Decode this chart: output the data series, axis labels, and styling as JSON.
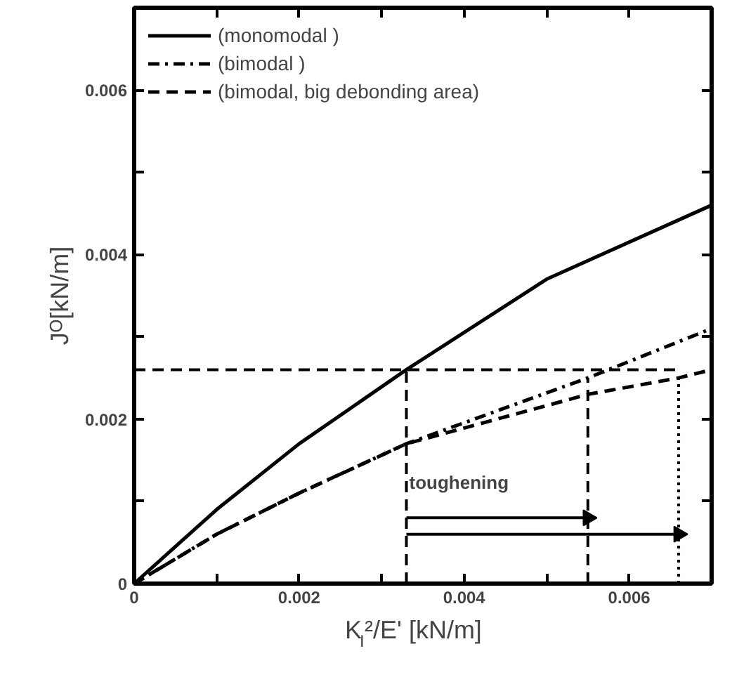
{
  "chart_data": {
    "type": "line",
    "xlabel": "K$_{I}$²/E' [kN/m]",
    "ylabel": "Jᴼ[kN/m]",
    "xlim": [
      0,
      0.007
    ],
    "ylim": [
      0,
      0.007
    ],
    "xticks": [
      0,
      {
        "value": 0.001,
        "label": null
      },
      0.002,
      {
        "value": 0.003,
        "label": null
      },
      0.004,
      {
        "value": 0.005,
        "label": null
      },
      0.006
    ],
    "yticks": [
      0,
      {
        "value": 0.001,
        "label": null
      },
      0.002,
      {
        "value": 0.003,
        "label": null
      },
      0.004,
      {
        "value": 0.005,
        "label": null
      },
      0.006
    ],
    "legend": "top left",
    "grid": false,
    "series": [
      {
        "name": "(monomodal )",
        "color": "#000000",
        "line_style": "solid",
        "x": [
          0,
          0.001,
          0.002,
          0.0033,
          0.005,
          0.007
        ],
        "values": [
          0,
          0.0009,
          0.0017,
          0.0026,
          0.0037,
          0.0046
        ]
      },
      {
        "name": "(bimodal )",
        "color": "#000000",
        "line_style": "dashdot",
        "x": [
          0,
          0.001,
          0.002,
          0.0033,
          0.0055,
          0.007
        ],
        "values": [
          0,
          0.0006,
          0.0011,
          0.0017,
          0.0025,
          0.0031
        ]
      },
      {
        "name": "(bimodal, big debonding area)",
        "color": "#000000",
        "line_style": "dashed",
        "x": [
          0,
          0.001,
          0.002,
          0.0033,
          0.0055,
          0.0066,
          0.007
        ],
        "values": [
          0,
          0.0006,
          0.0011,
          0.0017,
          0.0023,
          0.0025,
          0.0026
        ]
      },
      {
        "color": "#000000",
        "line_style": "dashed",
        "x": [
          0,
          0.0066
        ],
        "values": [
          0.0026,
          0.0026
        ]
      },
      {
        "color": "#000000",
        "line_style": "dashed",
        "x": [
          0.0033,
          0.0033
        ],
        "values": [
          0,
          0.0026
        ]
      },
      {
        "color": "#000000",
        "line_style": "dashed",
        "x": [
          0.0055,
          0.0055
        ],
        "values": [
          0,
          0.0025
        ]
      },
      {
        "color": "#000000",
        "line_style": "dotted",
        "x": [
          0.0066,
          0.0066
        ],
        "values": [
          0,
          0.0025
        ]
      },
      {
        "color": "#000000",
        "line_style": "solid",
        "marker": "triangle",
        "x": [
          0.0033,
          0.0055
        ],
        "values": [
          0.0008,
          0.0008
        ]
      },
      {
        "color": "#000000",
        "line_style": "solid",
        "marker": "triangle",
        "x": [
          0.0033,
          0.0066
        ],
        "values": [
          0.0006,
          0.0006
        ]
      }
    ],
    "annotations": [
      {
        "text": "toughening",
        "x": 0.0033,
        "y": 0.0011
      }
    ]
  }
}
